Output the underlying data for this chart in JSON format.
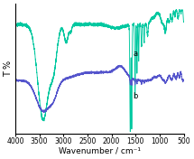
{
  "xlabel": "Wavenumber / cm⁻¹",
  "ylabel": "T %",
  "xlim": [
    4000,
    500
  ],
  "background_color": "#ffffff",
  "line_a_color": "#00c8a0",
  "line_b_color": "#5555cc",
  "label_a": "a",
  "label_b": "b",
  "xticks": [
    4000,
    3500,
    3000,
    2500,
    2000,
    1500,
    1000,
    500
  ],
  "xlabel_fontsize": 6.5,
  "ylabel_fontsize": 7,
  "tick_fontsize": 5.5
}
